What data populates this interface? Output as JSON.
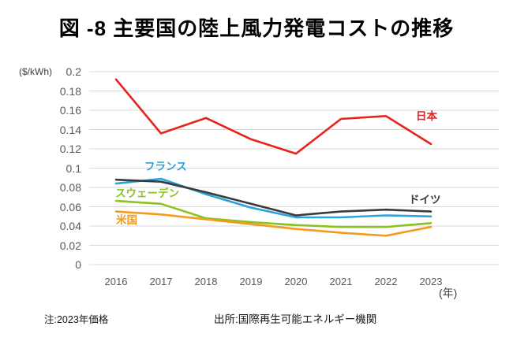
{
  "figure": {
    "note": "注:2023年価格",
    "source": "出所:国際再生可能エネルギー機関"
  },
  "chart_data": {
    "type": "line",
    "title": "図 -8 主要国の陸上風力発電コストの推移",
    "y_unit_label": "($/kWh)",
    "x_unit_label": "(年)",
    "xlabel": "",
    "ylabel": "($/kWh)",
    "categories": [
      "2016",
      "2017",
      "2018",
      "2019",
      "2020",
      "2021",
      "2022",
      "2023"
    ],
    "ylim": [
      0,
      0.2
    ],
    "ytick_interval": 0.02,
    "grid": "horizontal",
    "gridline_color": "#d9d9d9",
    "axis_text_color": "#595959",
    "legend_position": "labels-on-lines",
    "series": [
      {
        "name": "日本",
        "color": "#e8221a",
        "values": [
          0.192,
          0.136,
          0.152,
          0.13,
          0.115,
          0.151,
          0.154,
          0.125
        ]
      },
      {
        "name": "ドイツ",
        "color": "#3a3a3a",
        "values": [
          0.088,
          0.086,
          0.075,
          0.063,
          0.051,
          0.055,
          0.057,
          0.055
        ]
      },
      {
        "name": "フランス",
        "color": "#2aa2dc",
        "values": [
          0.084,
          0.089,
          0.073,
          0.059,
          0.049,
          0.049,
          0.051,
          0.05
        ]
      },
      {
        "name": "スウェーデン",
        "color": "#8cc21d",
        "values": [
          0.066,
          0.063,
          0.048,
          0.044,
          0.041,
          0.039,
          0.039,
          0.043
        ]
      },
      {
        "name": "米国",
        "color": "#f59a1c",
        "values": [
          0.055,
          0.052,
          0.047,
          0.042,
          0.037,
          0.033,
          0.03,
          0.039
        ]
      }
    ],
    "note": "注:2023年価格",
    "source": "出所:国際再生可能エネルギー機関"
  }
}
